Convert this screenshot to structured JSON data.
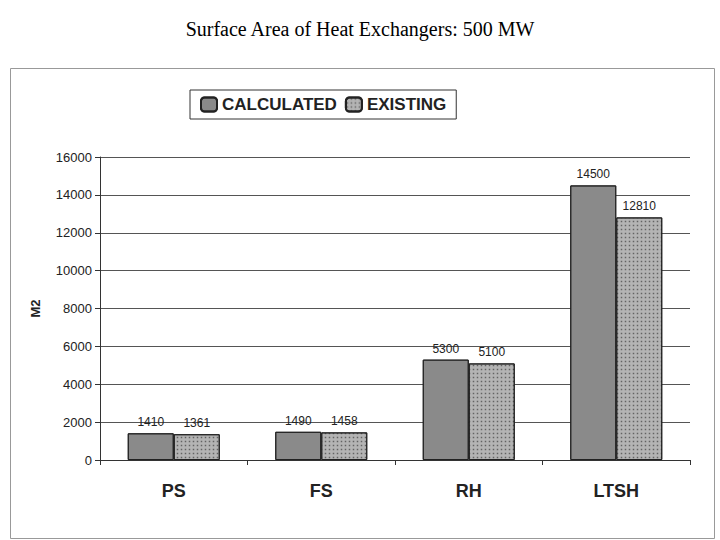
{
  "chart_data": {
    "type": "bar",
    "title": "Surface Area of Heat Exchangers: 500 MW",
    "ylabel": "M2",
    "categories": [
      "PS",
      "FS",
      "RH",
      "LTSH"
    ],
    "series": [
      {
        "name": "CALCULATED",
        "color": "#8a8a8a",
        "values": [
          1410,
          1490,
          5300,
          14500
        ]
      },
      {
        "name": "EXISTING",
        "color": "#b4b4b4",
        "values": [
          1361,
          1458,
          5100,
          12810
        ]
      }
    ],
    "ylim": [
      0,
      16000
    ],
    "yticks": [
      0,
      2000,
      4000,
      6000,
      8000,
      10000,
      12000,
      14000,
      16000
    ],
    "grid": true,
    "legend": "top",
    "data_labels": true
  }
}
